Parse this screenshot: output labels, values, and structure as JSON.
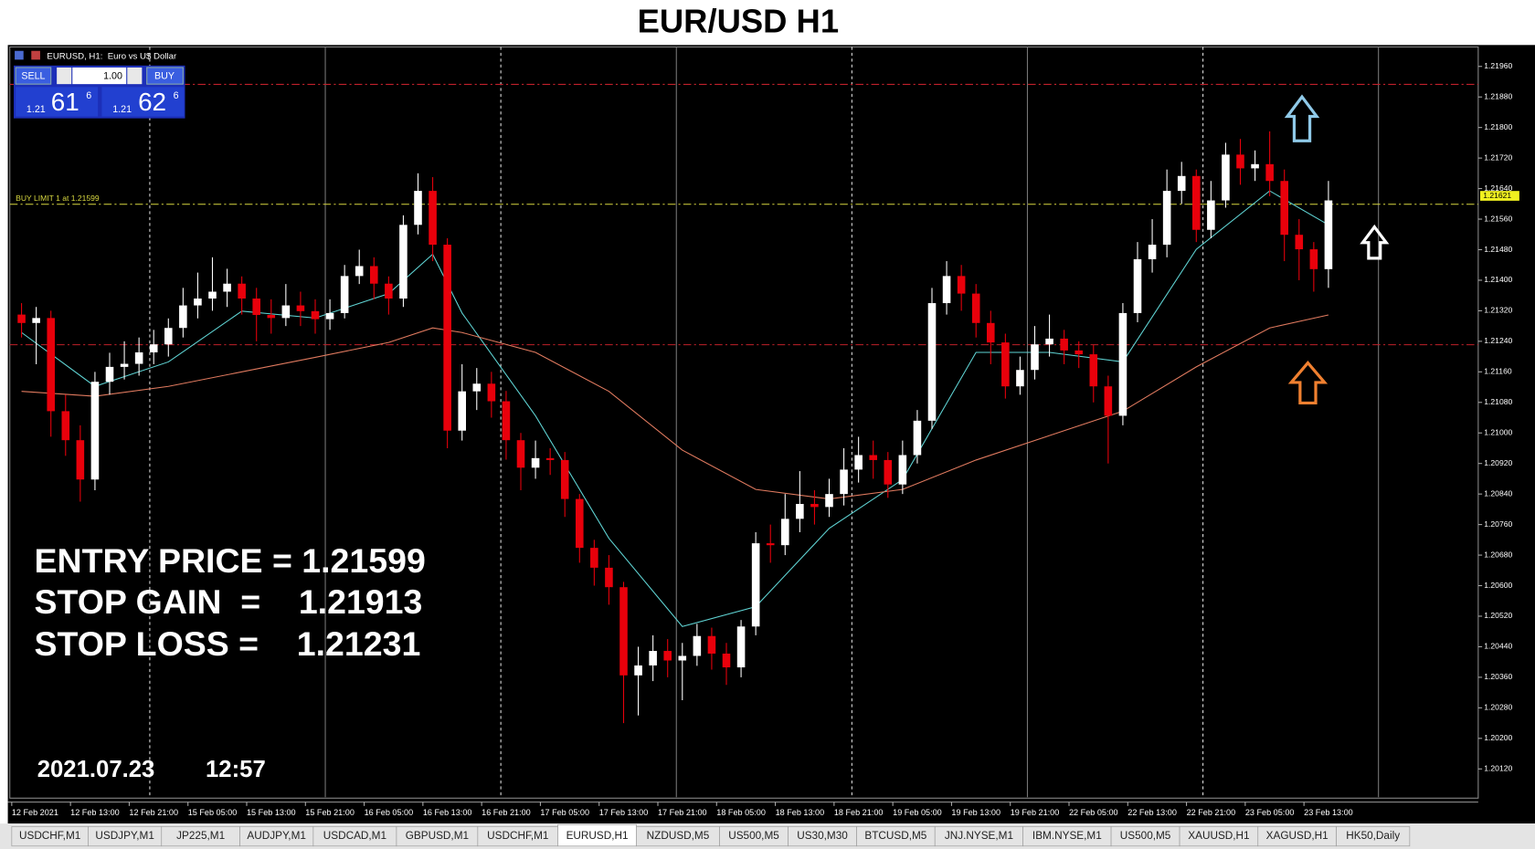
{
  "chart_data": {
    "type": "candlestick",
    "title": "EUR/USD H1",
    "window_caption": "EURUSD, H1:  Euro vs U$ Dollar",
    "ylim": [
      1.20046,
      1.22011
    ],
    "yticks": [
      {
        "value": 1.2196,
        "label": "1.21960"
      },
      {
        "value": 1.2188,
        "label": "1.21880"
      },
      {
        "value": 1.218,
        "label": "1.21800"
      },
      {
        "value": 1.2172,
        "label": "1.21720"
      },
      {
        "value": 1.2164,
        "label": "1.21640"
      },
      {
        "value": 1.2156,
        "label": "1.21560"
      },
      {
        "value": 1.2148,
        "label": "1.21480"
      },
      {
        "value": 1.214,
        "label": "1.21400"
      },
      {
        "value": 1.2132,
        "label": "1.21320"
      },
      {
        "value": 1.2124,
        "label": "1.21240"
      },
      {
        "value": 1.2116,
        "label": "1.21160"
      },
      {
        "value": 1.2108,
        "label": "1.21080"
      },
      {
        "value": 1.21,
        "label": "1.21000"
      },
      {
        "value": 1.2092,
        "label": "1.20920"
      },
      {
        "value": 1.2084,
        "label": "1.20840"
      },
      {
        "value": 1.2076,
        "label": "1.20760"
      },
      {
        "value": 1.2068,
        "label": "1.20680"
      },
      {
        "value": 1.206,
        "label": "1.20600"
      },
      {
        "value": 1.2052,
        "label": "1.20520"
      },
      {
        "value": 1.2044,
        "label": "1.20440"
      },
      {
        "value": 1.2036,
        "label": "1.20360"
      },
      {
        "value": 1.2028,
        "label": "1.20280"
      },
      {
        "value": 1.202,
        "label": "1.20200"
      },
      {
        "value": 1.2012,
        "label": "1.20120"
      }
    ],
    "grid": false,
    "xtick_labels": [
      "12 Feb 2021",
      "12 Feb 13:00",
      "12 Feb 21:00",
      "15 Feb 05:00",
      "15 Feb 13:00",
      "15 Feb 21:00",
      "16 Feb 05:00",
      "16 Feb 13:00",
      "16 Feb 21:00",
      "17 Feb 05:00",
      "17 Feb 13:00",
      "17 Feb 21:00",
      "18 Feb 05:00",
      "18 Feb 13:00",
      "18 Feb 21:00",
      "19 Feb 05:00",
      "19 Feb 13:00",
      "19 Feb 21:00",
      "22 Feb 05:00",
      "22 Feb 13:00",
      "22 Feb 21:00",
      "23 Feb 05:00",
      "23 Feb 13:00"
    ],
    "up_color": "#ffffff",
    "down_color": "#e8000b",
    "open": [
      1.2131,
      1.21288,
      1.21301,
      1.21057,
      1.20981,
      1.20878,
      1.21134,
      1.21173,
      1.21181,
      1.21211,
      1.21232,
      1.21275,
      1.21334,
      1.21352,
      1.2137,
      1.21391,
      1.21352,
      1.21309,
      1.21301,
      1.21334,
      1.21319,
      1.21298,
      1.21314,
      1.21411,
      1.21437,
      1.21391,
      1.21352,
      1.21545,
      1.21634,
      1.21493,
      1.21006,
      1.21109,
      1.21129,
      1.21083,
      1.20981,
      1.20909,
      1.20934,
      1.20929,
      1.20827,
      1.20699,
      1.20647,
      1.20596,
      1.20365,
      1.20391,
      1.20429,
      1.20404,
      1.20416,
      1.20468,
      1.20422,
      1.20386,
      1.20493,
      1.20711,
      1.20706,
      1.20775,
      1.20814,
      1.20806,
      1.2084,
      1.20904,
      1.20942,
      1.20929,
      1.20865,
      1.20942,
      1.21032,
      1.2134,
      1.21411,
      1.21365,
      1.21288,
      1.21237,
      1.21122,
      1.21165,
      1.21232,
      1.21247,
      1.21216,
      1.21206,
      1.21122,
      1.21045,
      1.21314,
      1.21455,
      1.21493,
      1.21634,
      1.21673,
      1.21532,
      1.21609,
      1.21729,
      1.21693,
      1.21704,
      1.2166,
      1.21519,
      1.21481,
      1.21429
    ],
    "high": [
      1.2134,
      1.2133,
      1.2132,
      1.211,
      1.2102,
      1.2116,
      1.2121,
      1.2124,
      1.2125,
      1.2127,
      1.213,
      1.2138,
      1.2142,
      1.2146,
      1.2143,
      1.2141,
      1.2138,
      1.2135,
      1.2139,
      1.2137,
      1.2135,
      1.2135,
      1.2144,
      1.2148,
      1.2146,
      1.2141,
      1.2157,
      1.2168,
      1.2167,
      1.2151,
      1.2118,
      1.2117,
      1.2116,
      1.2111,
      1.21,
      1.2098,
      1.2096,
      1.2095,
      1.2084,
      1.2072,
      1.2068,
      1.2061,
      1.2044,
      1.2047,
      1.2046,
      1.2045,
      1.205,
      1.2049,
      1.2045,
      1.2051,
      1.2074,
      1.2076,
      1.2084,
      1.209,
      1.2085,
      1.2088,
      1.2096,
      1.2099,
      1.2098,
      1.2095,
      1.2098,
      1.2106,
      1.2138,
      1.2145,
      1.2144,
      1.2139,
      1.2132,
      1.2126,
      1.212,
      1.2128,
      1.2131,
      1.2127,
      1.2124,
      1.2123,
      1.2115,
      1.2134,
      1.215,
      1.2156,
      1.2169,
      1.2171,
      1.2169,
      1.2166,
      1.2176,
      1.2177,
      1.2174,
      1.2179,
      1.2169,
      1.2156,
      1.215,
      1.2166
    ],
    "low": [
      1.2125,
      1.2118,
      1.2099,
      1.2094,
      1.2082,
      1.2085,
      1.211,
      1.2114,
      1.2115,
      1.2118,
      1.212,
      1.2125,
      1.213,
      1.2132,
      1.2133,
      1.2131,
      1.2124,
      1.2126,
      1.2128,
      1.2128,
      1.2126,
      1.2127,
      1.213,
      1.2139,
      1.2135,
      1.2131,
      1.2133,
      1.2152,
      1.2145,
      1.2096,
      1.2098,
      1.2106,
      1.2104,
      1.2093,
      1.2085,
      1.2088,
      1.2089,
      1.2078,
      1.2066,
      1.206,
      1.2055,
      1.2024,
      1.2026,
      1.2035,
      1.2036,
      1.203,
      1.2039,
      1.2038,
      1.2034,
      1.2036,
      1.2047,
      1.2066,
      1.2068,
      1.2074,
      1.2076,
      1.2078,
      1.2081,
      1.2087,
      1.2088,
      1.2083,
      1.2084,
      1.2092,
      1.2101,
      1.2131,
      1.2132,
      1.2125,
      1.2118,
      1.2109,
      1.211,
      1.2114,
      1.212,
      1.2118,
      1.2117,
      1.2108,
      1.2092,
      1.2102,
      1.2129,
      1.2142,
      1.2146,
      1.216,
      1.215,
      1.2151,
      1.2159,
      1.2165,
      1.2166,
      1.2162,
      1.2145,
      1.214,
      1.2137,
      1.2138
    ],
    "close": [
      1.21288,
      1.21301,
      1.21057,
      1.20981,
      1.20878,
      1.21134,
      1.21173,
      1.21181,
      1.21211,
      1.21232,
      1.21275,
      1.21334,
      1.21352,
      1.2137,
      1.21391,
      1.21352,
      1.21309,
      1.21301,
      1.21334,
      1.21319,
      1.21298,
      1.21314,
      1.21411,
      1.21437,
      1.21391,
      1.21352,
      1.21545,
      1.21634,
      1.21493,
      1.21006,
      1.21109,
      1.21129,
      1.21083,
      1.20981,
      1.20909,
      1.20934,
      1.20929,
      1.20827,
      1.20699,
      1.20647,
      1.20596,
      1.20365,
      1.20391,
      1.20429,
      1.20404,
      1.20416,
      1.20468,
      1.20422,
      1.20386,
      1.20493,
      1.20711,
      1.20706,
      1.20775,
      1.20814,
      1.20806,
      1.2084,
      1.20904,
      1.20942,
      1.20929,
      1.20865,
      1.20942,
      1.21032,
      1.2134,
      1.21411,
      1.21365,
      1.21288,
      1.21237,
      1.21122,
      1.21165,
      1.21232,
      1.21247,
      1.21216,
      1.21206,
      1.21122,
      1.21045,
      1.21314,
      1.21455,
      1.21493,
      1.21634,
      1.21673,
      1.21532,
      1.21609,
      1.21729,
      1.21693,
      1.21704,
      1.2166,
      1.21519,
      1.21481,
      1.21429,
      1.21609
    ],
    "ma_series": [
      {
        "color": "#5fd3d3",
        "x": [
          0,
          5,
          10,
          15,
          20,
          25,
          28,
          30,
          35,
          40,
          45,
          50,
          55,
          60,
          65,
          70,
          75,
          80,
          85,
          89
        ],
        "values": [
          1.21263,
          1.21122,
          1.21186,
          1.21319,
          1.21301,
          1.21365,
          1.21468,
          1.21314,
          1.21045,
          1.20724,
          1.20493,
          1.20545,
          1.2075,
          1.20878,
          1.21211,
          1.21211,
          1.21186,
          1.21481,
          1.21634,
          1.21545
        ]
      },
      {
        "color": "#e07a5f",
        "x": [
          0,
          5,
          10,
          15,
          20,
          25,
          28,
          30,
          35,
          40,
          45,
          50,
          55,
          60,
          65,
          70,
          75,
          80,
          85,
          89
        ],
        "values": [
          1.21109,
          1.21096,
          1.21122,
          1.2116,
          1.21198,
          1.21237,
          1.21275,
          1.21263,
          1.21211,
          1.21109,
          1.20955,
          1.20852,
          1.20827,
          1.20852,
          1.20929,
          1.20993,
          1.21057,
          1.21173,
          1.21275,
          1.21309
        ]
      }
    ],
    "levels": [
      {
        "value": 1.21913,
        "color": "#c0202a"
      },
      {
        "value": 1.21231,
        "color": "#c0202a"
      },
      {
        "value": 1.21599,
        "color": "#d8d840"
      }
    ],
    "buy_limit_label": "BUY LIMIT 1 at 1.21599",
    "current_price": 1.21621,
    "annotations": [
      "ENTRY PRICE = 1.21599",
      "STOP GAIN  =    1.21913",
      "STOP LOSS =    1.21231"
    ],
    "date_text": "2021.07.23",
    "time_text": "12:57"
  },
  "trade_panel": {
    "sell": "SELL",
    "buy": "BUY",
    "lot": "1.00",
    "bid_prefix": "1.21",
    "bid_main": "61",
    "bid_sup": "6",
    "ask_prefix": "1.21",
    "ask_main": "62",
    "ask_sup": "6"
  },
  "tabs": [
    "USDCHF,M1",
    "USDJPY,M1",
    "JP225,M1",
    "AUDJPY,M1",
    "USDCAD,M1",
    "GBPUSD,M1",
    "USDCHF,M1",
    "EURUSD,H1",
    "NZDUSD,M5",
    "US500,M5",
    "US30,M30",
    "BTCUSD,M5",
    "JNJ.NYSE,M1",
    "IBM.NYSE,M1",
    "US500,M5",
    "XAUUSD,H1",
    "XAGUSD,H1",
    "HK50,Daily"
  ],
  "active_tab": 7
}
